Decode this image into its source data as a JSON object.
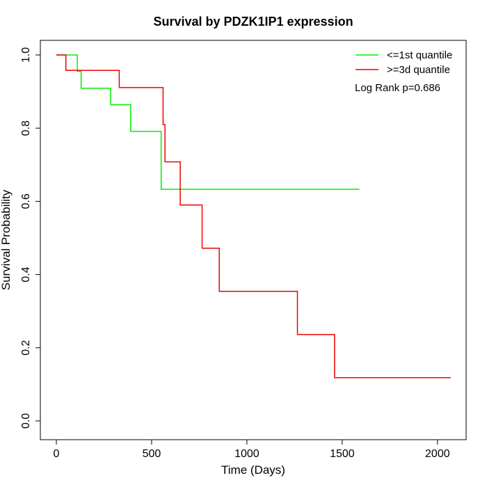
{
  "chart_data": {
    "type": "line",
    "title": "Survival by PDZK1IP1 expression",
    "xlabel": "Time (Days)",
    "ylabel": "Survival Probability",
    "xlim": [
      0,
      2070
    ],
    "ylim": [
      0,
      1
    ],
    "xticks": [
      0,
      500,
      1000,
      1500,
      2000
    ],
    "yticks": [
      0.0,
      0.2,
      0.4,
      0.6,
      0.8,
      1.0
    ],
    "xtick_labels": [
      "0",
      "500",
      "1000",
      "1500",
      "2000"
    ],
    "ytick_labels": [
      "0.0",
      "0.2",
      "0.4",
      "0.6",
      "0.8",
      "1.0"
    ],
    "legend_position": "top-right",
    "grid": false,
    "annotation": "Log Rank p=0.686",
    "series": [
      {
        "name": "<=1st quantile",
        "color": "#00ee00",
        "step": true,
        "x": [
          0,
          110,
          130,
          285,
          390,
          550,
          1590
        ],
        "y": [
          1.0,
          0.955,
          0.909,
          0.864,
          0.791,
          0.633,
          0.633
        ]
      },
      {
        "name": ">=3d quantile",
        "color": "#ee0000",
        "step": true,
        "x": [
          0,
          50,
          330,
          560,
          570,
          650,
          765,
          855,
          1265,
          1460,
          2070
        ],
        "y": [
          1.0,
          0.958,
          0.911,
          0.81,
          0.708,
          0.59,
          0.472,
          0.354,
          0.236,
          0.118,
          0.118
        ]
      }
    ]
  }
}
